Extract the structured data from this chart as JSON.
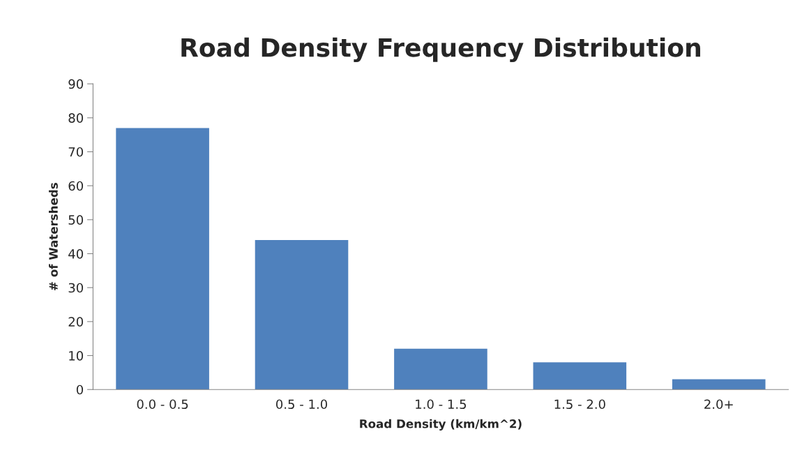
{
  "chart_data": {
    "type": "bar",
    "title": "Road Density Frequency Distribution",
    "xlabel": "Road Density (km/km^2)",
    "ylabel": "# of Watersheds",
    "categories": [
      "0.0 - 0.5",
      "0.5 - 1.0",
      "1.0 - 1.5",
      "1.5 - 2.0",
      "2.0+"
    ],
    "values": [
      77,
      44,
      12,
      8,
      3
    ],
    "color": "#4f81bd",
    "ylim": [
      0,
      90
    ],
    "yticks": [
      0,
      10,
      20,
      30,
      40,
      50,
      60,
      70,
      80,
      90
    ],
    "grid": false,
    "legend": false
  }
}
